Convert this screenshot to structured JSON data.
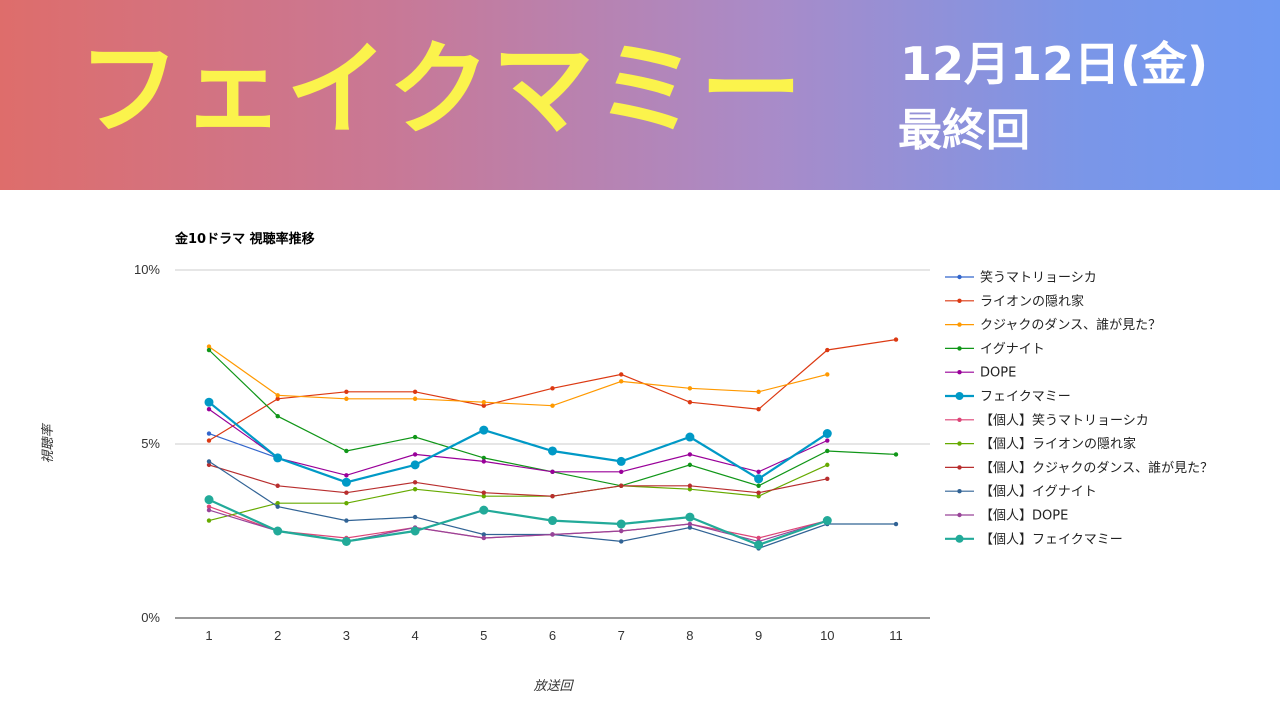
{
  "header": {
    "title": "フェイクマミー",
    "date": "12月12日(金)",
    "note": "最終回"
  },
  "chart_data": {
    "type": "line",
    "title": "金10ドラマ 視聴率推移",
    "xlabel": "放送回",
    "ylabel": "視聴率",
    "ylim": [
      0,
      10
    ],
    "y_ticks": [
      "0%",
      "5%",
      "10%"
    ],
    "y_tick_values": [
      0,
      5,
      10
    ],
    "x": [
      1,
      2,
      3,
      4,
      5,
      6,
      7,
      8,
      9,
      10,
      11
    ],
    "legend_position": "right",
    "series": [
      {
        "name": "笑うマトリョーシカ",
        "color": "#3366cc",
        "highlight": false,
        "values": [
          5.3,
          4.6,
          null,
          null,
          null,
          null,
          null,
          null,
          null,
          null,
          null
        ]
      },
      {
        "name": "ライオンの隠れ家",
        "color": "#dc3912",
        "highlight": false,
        "values": [
          5.1,
          6.3,
          6.5,
          6.5,
          6.1,
          6.6,
          7.0,
          6.2,
          6.0,
          7.7,
          8.0
        ]
      },
      {
        "name": "クジャクのダンス、誰が見た？",
        "color": "#ff9900",
        "highlight": false,
        "values": [
          7.8,
          6.4,
          6.3,
          6.3,
          6.2,
          6.1,
          6.8,
          6.6,
          6.5,
          7.0,
          null
        ]
      },
      {
        "name": "イグナイト",
        "color": "#109618",
        "highlight": false,
        "values": [
          7.7,
          5.8,
          4.8,
          5.2,
          4.6,
          4.2,
          3.8,
          4.4,
          3.8,
          4.8,
          4.7
        ]
      },
      {
        "name": "DOPE",
        "color": "#990099",
        "highlight": false,
        "values": [
          6.0,
          4.6,
          4.1,
          4.7,
          4.5,
          4.2,
          4.2,
          4.7,
          4.2,
          5.1,
          null
        ]
      },
      {
        "name": "フェイクマミー",
        "color": "#0099c6",
        "highlight": true,
        "values": [
          6.2,
          4.6,
          3.9,
          4.4,
          5.4,
          4.8,
          4.5,
          5.2,
          4.0,
          5.3,
          null
        ]
      },
      {
        "name": "【個人】笑うマトリョーシカ",
        "color": "#dd4477",
        "highlight": false,
        "values": [
          3.2,
          2.5,
          2.3,
          2.6,
          2.3,
          2.4,
          2.5,
          2.7,
          2.3,
          2.8,
          null
        ]
      },
      {
        "name": "【個人】ライオンの隠れ家",
        "color": "#66aa00",
        "highlight": false,
        "values": [
          2.8,
          3.3,
          3.3,
          3.7,
          3.5,
          3.5,
          3.8,
          3.7,
          3.5,
          4.4,
          null
        ]
      },
      {
        "name": "【個人】クジャクのダンス、誰が見た？",
        "color": "#b82e2e",
        "highlight": false,
        "values": [
          4.4,
          3.8,
          3.6,
          3.9,
          3.6,
          3.5,
          3.8,
          3.8,
          3.6,
          4.0,
          null
        ]
      },
      {
        "name": "【個人】イグナイト",
        "color": "#316395",
        "highlight": false,
        "values": [
          4.5,
          3.2,
          2.8,
          2.9,
          2.4,
          2.4,
          2.2,
          2.6,
          2.0,
          2.7,
          2.7
        ]
      },
      {
        "name": "【個人】DOPE",
        "color": "#994499",
        "highlight": false,
        "values": [
          3.1,
          2.5,
          2.2,
          2.6,
          2.3,
          2.4,
          2.5,
          2.7,
          2.2,
          2.8,
          null
        ]
      },
      {
        "name": "【個人】フェイクマミー",
        "color": "#22aa99",
        "highlight": true,
        "values": [
          3.4,
          2.5,
          2.2,
          2.5,
          3.1,
          2.8,
          2.7,
          2.9,
          2.1,
          2.8,
          null
        ]
      }
    ]
  }
}
